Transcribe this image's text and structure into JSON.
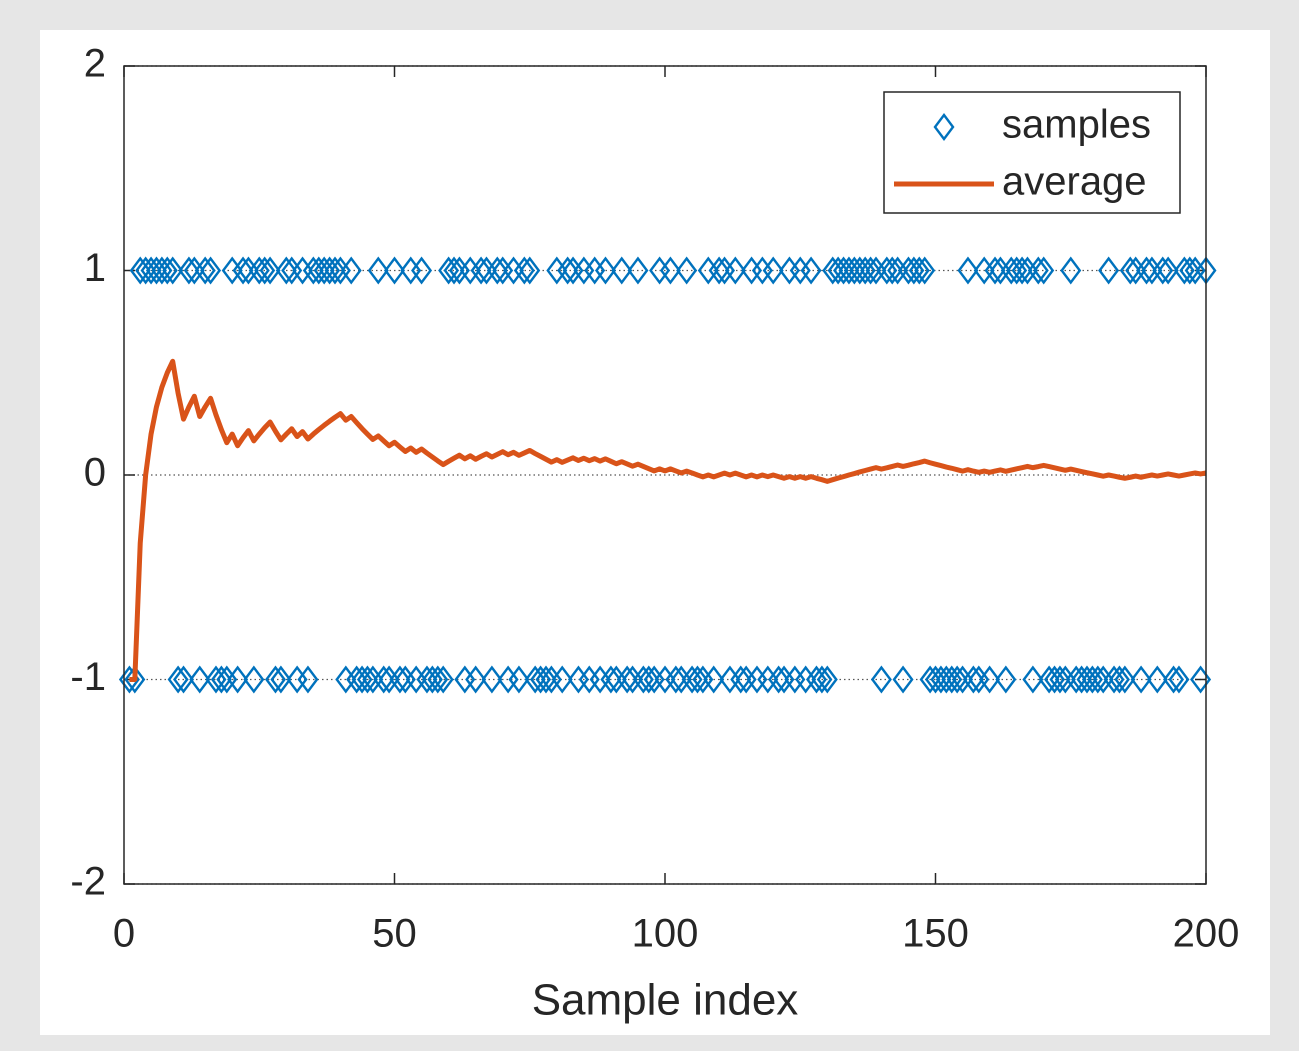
{
  "chart_data": {
    "type": "line",
    "xlabel": "Sample index",
    "x": [
      1,
      2,
      3,
      4,
      5,
      6,
      7,
      8,
      9,
      10,
      11,
      12,
      13,
      14,
      15,
      16,
      17,
      18,
      19,
      20,
      21,
      22,
      23,
      24,
      25,
      26,
      27,
      28,
      29,
      30,
      31,
      32,
      33,
      34,
      35,
      36,
      37,
      38,
      39,
      40,
      41,
      42,
      43,
      44,
      45,
      46,
      47,
      48,
      49,
      50,
      51,
      52,
      53,
      54,
      55,
      56,
      57,
      58,
      59,
      60,
      61,
      62,
      63,
      64,
      65,
      66,
      67,
      68,
      69,
      70,
      71,
      72,
      73,
      74,
      75,
      76,
      77,
      78,
      79,
      80,
      81,
      82,
      83,
      84,
      85,
      86,
      87,
      88,
      89,
      90,
      91,
      92,
      93,
      94,
      95,
      96,
      97,
      98,
      99,
      100,
      101,
      102,
      103,
      104,
      105,
      106,
      107,
      108,
      109,
      110,
      111,
      112,
      113,
      114,
      115,
      116,
      117,
      118,
      119,
      120,
      121,
      122,
      123,
      124,
      125,
      126,
      127,
      128,
      129,
      130,
      131,
      132,
      133,
      134,
      135,
      136,
      137,
      138,
      139,
      140,
      141,
      142,
      143,
      144,
      145,
      146,
      147,
      148,
      149,
      150,
      151,
      152,
      153,
      154,
      155,
      156,
      157,
      158,
      159,
      160,
      161,
      162,
      163,
      164,
      165,
      166,
      167,
      168,
      169,
      170,
      171,
      172,
      173,
      174,
      175,
      176,
      177,
      178,
      179,
      180,
      181,
      182,
      183,
      184,
      185,
      186,
      187,
      188,
      189,
      190,
      191,
      192,
      193,
      194,
      195,
      196,
      197,
      198,
      199,
      200
    ],
    "series": [
      {
        "name": "samples",
        "color": "#0072bd",
        "marker": "diamond",
        "linestyle": "none",
        "values": [
          -1,
          -1,
          1,
          1,
          1,
          1,
          1,
          1,
          1,
          -1,
          -1,
          1,
          1,
          -1,
          1,
          1,
          -1,
          -1,
          -1,
          1,
          -1,
          1,
          1,
          -1,
          1,
          1,
          1,
          -1,
          -1,
          1,
          1,
          -1,
          1,
          -1,
          1,
          1,
          1,
          1,
          1,
          1,
          -1,
          1,
          -1,
          -1,
          -1,
          -1,
          1,
          -1,
          -1,
          1,
          -1,
          -1,
          1,
          -1,
          1,
          -1,
          -1,
          -1,
          -1,
          1,
          1,
          1,
          -1,
          1,
          -1,
          1,
          1,
          -1,
          1,
          1,
          -1,
          1,
          -1,
          1,
          1,
          -1,
          -1,
          -1,
          -1,
          1,
          -1,
          1,
          1,
          -1,
          1,
          -1,
          1,
          -1,
          1,
          -1,
          -1,
          1,
          -1,
          -1,
          1,
          -1,
          -1,
          -1,
          1,
          -1,
          1,
          -1,
          -1,
          1,
          -1,
          -1,
          -1,
          1,
          -1,
          1,
          1,
          -1,
          1,
          -1,
          -1,
          1,
          -1,
          1,
          -1,
          1,
          -1,
          -1,
          1,
          -1,
          1,
          -1,
          1,
          -1,
          -1,
          -1,
          1,
          1,
          1,
          1,
          1,
          1,
          1,
          1,
          1,
          -1,
          1,
          1,
          1,
          -1,
          1,
          1,
          1,
          1,
          -1,
          -1,
          -1,
          -1,
          -1,
          -1,
          -1,
          1,
          -1,
          -1,
          1,
          -1,
          1,
          1,
          -1,
          1,
          1,
          1,
          1,
          -1,
          1,
          1,
          -1,
          -1,
          -1,
          -1,
          1,
          -1,
          -1,
          -1,
          -1,
          -1,
          -1,
          1,
          -1,
          -1,
          -1,
          1,
          1,
          -1,
          1,
          1,
          -1,
          1,
          1,
          -1,
          -1,
          1,
          1,
          1,
          -1,
          1
        ]
      },
      {
        "name": "average",
        "color": "#d95319",
        "marker": "none",
        "linestyle": "solid",
        "values": [
          -1,
          -1,
          -0.333,
          0,
          0.2,
          0.333,
          0.429,
          0.5,
          0.556,
          0.4,
          0.273,
          0.333,
          0.385,
          0.286,
          0.333,
          0.375,
          0.294,
          0.222,
          0.158,
          0.2,
          0.143,
          0.182,
          0.217,
          0.167,
          0.2,
          0.231,
          0.259,
          0.214,
          0.172,
          0.2,
          0.226,
          0.188,
          0.212,
          0.176,
          0.2,
          0.222,
          0.243,
          0.263,
          0.282,
          0.3,
          0.268,
          0.286,
          0.256,
          0.227,
          0.2,
          0.174,
          0.191,
          0.167,
          0.143,
          0.16,
          0.137,
          0.115,
          0.132,
          0.111,
          0.127,
          0.107,
          0.088,
          0.069,
          0.051,
          0.067,
          0.082,
          0.097,
          0.079,
          0.094,
          0.077,
          0.091,
          0.104,
          0.088,
          0.101,
          0.114,
          0.099,
          0.111,
          0.096,
          0.108,
          0.12,
          0.105,
          0.091,
          0.077,
          0.063,
          0.075,
          0.062,
          0.073,
          0.084,
          0.071,
          0.082,
          0.07,
          0.08,
          0.068,
          0.079,
          0.067,
          0.055,
          0.065,
          0.054,
          0.043,
          0.053,
          0.042,
          0.031,
          0.02,
          0.03,
          0.02,
          0.03,
          0.02,
          0.01,
          0.019,
          0.01,
          0,
          -0.009,
          0,
          -0.009,
          0,
          0.009,
          0,
          0.009,
          0,
          -0.009,
          0,
          -0.009,
          0,
          -0.008,
          0,
          -0.008,
          -0.016,
          -0.008,
          -0.016,
          -0.008,
          -0.016,
          -0.008,
          -0.016,
          -0.023,
          -0.031,
          -0.023,
          -0.015,
          -0.008,
          0,
          0.007,
          0.015,
          0.022,
          0.029,
          0.036,
          0.029,
          0.035,
          0.042,
          0.049,
          0.042,
          0.048,
          0.055,
          0.061,
          0.068,
          0.06,
          0.053,
          0.046,
          0.039,
          0.033,
          0.026,
          0.019,
          0.026,
          0.019,
          0.013,
          0.019,
          0.013,
          0.019,
          0.025,
          0.018,
          0.024,
          0.03,
          0.036,
          0.042,
          0.036,
          0.041,
          0.047,
          0.041,
          0.035,
          0.029,
          0.023,
          0.029,
          0.023,
          0.017,
          0.011,
          0.006,
          0,
          -0.006,
          0,
          -0.005,
          -0.011,
          -0.016,
          -0.011,
          -0.005,
          -0.011,
          -0.005,
          0,
          -0.005,
          0,
          0.005,
          0,
          -0.005,
          0,
          0.005,
          0.01,
          0.005,
          0.01
        ]
      }
    ],
    "xlim": [
      0,
      200
    ],
    "xticks": [
      0,
      50,
      100,
      150,
      200
    ],
    "ylim": [
      -2,
      2
    ],
    "yticks": [
      -2,
      -1,
      0,
      1,
      2
    ],
    "grid": true,
    "legend": "northeast"
  }
}
